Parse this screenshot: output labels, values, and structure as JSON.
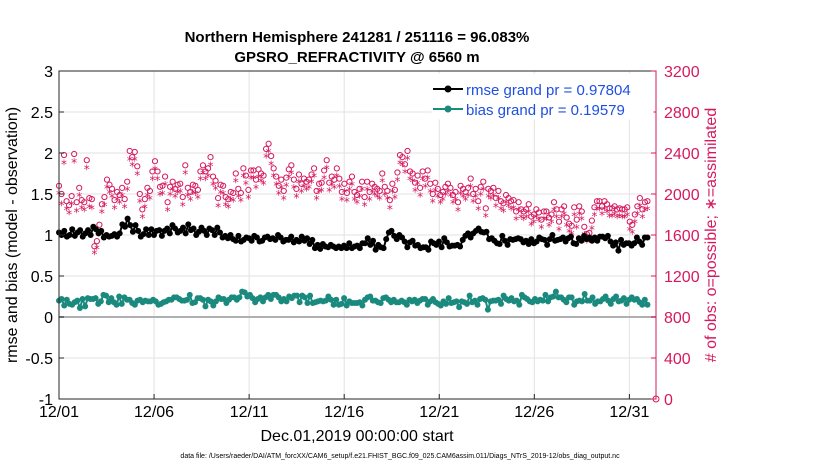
{
  "chart_data": {
    "type": "line",
    "title": "Northern Hemisphere 241281 / 251116 = 96.083%",
    "subtitle": "GPSRO_REFRACTIVITY @ 6560 m",
    "xlabel": "Dec.01,2019 00:00:00 start",
    "ylabel_left": "rmse and bias (model - observation)",
    "ylabel_right": "# of obs: o=possible; ∗=assimilated",
    "footnote": "data file: /Users/raeder/DAI/ATM_forcXX/CAM6_setup/f.e21.FHIST_BGC.f09_025.CAM6assim.011/Diags_NTrS_2019-12/obs_diag_output.nc",
    "x_tick_labels": [
      "12/01",
      "12/06",
      "12/11",
      "12/16",
      "12/21",
      "12/26",
      "12/31"
    ],
    "x_tick_days": [
      0,
      5,
      10,
      15,
      20,
      25,
      30
    ],
    "xlim": [
      0,
      31.4
    ],
    "ylim_left": [
      -1,
      3
    ],
    "y_ticks_left": [
      "-1",
      "-0.5",
      "0",
      "0.5",
      "1",
      "1.5",
      "2",
      "2.5",
      "3"
    ],
    "ylim_right": [
      0,
      3200
    ],
    "y_ticks_right": [
      "0",
      "400",
      "800",
      "1200",
      "1600",
      "2000",
      "2400",
      "2800",
      "3200"
    ],
    "grid": true,
    "legend_position": "top-right",
    "colors": {
      "rmse": "#000000",
      "bias": "#1a8a7e",
      "obs": "#d6195e",
      "legend_text": "#1f4fe0",
      "zero_line": "#b0b0b0"
    },
    "series": [
      {
        "name": "rmse grand pr = 0.97804",
        "axis": "left",
        "values": [
          1.03,
          1.0,
          1.05,
          0.98,
          1.0,
          1.07,
          0.99,
          1.03,
          1.06,
          0.98,
          1.02,
          1.06,
          1.0,
          1.1,
          1.07,
          1.02,
          1.05,
          0.97,
          1.0,
          0.98,
          0.99,
          1.01,
          0.98,
          1.02,
          1.13,
          1.1,
          1.2,
          1.12,
          1.04,
          1.12,
          1.05,
          0.98,
          1.01,
          1.07,
          1.0,
          1.07,
          1.0,
          1.05,
          1.06,
          0.99,
          1.05,
          1.08,
          1.02,
          1.12,
          1.08,
          1.03,
          1.05,
          1.09,
          1.02,
          1.13,
          1.06,
          1.08,
          1.0,
          1.04,
          1.09,
          1.05,
          1.0,
          1.08,
          1.06,
          1.0,
          1.09,
          1.03,
          0.97,
          0.99,
          0.96,
          1.0,
          0.95,
          0.93,
          0.99,
          0.92,
          0.94,
          0.97,
          0.96,
          0.93,
          0.99,
          0.97,
          0.92,
          0.93,
          0.97,
          0.98,
          0.95,
          0.96,
          0.94,
          1.0,
          0.97,
          0.92,
          0.94,
          0.94,
          0.98,
          0.91,
          0.94,
          0.92,
          0.98,
          0.93,
          0.96,
          0.89,
          0.94,
          0.84,
          0.88,
          0.83,
          0.89,
          0.86,
          0.85,
          0.88,
          0.86,
          0.84,
          0.86,
          0.84,
          0.87,
          0.84,
          0.9,
          0.84,
          0.86,
          0.87,
          0.84,
          0.9,
          0.9,
          0.96,
          0.88,
          0.93,
          0.82,
          0.88,
          0.85,
          0.84,
          0.95,
          1.03,
          1.05,
          0.99,
          0.95,
          1.0,
          0.97,
          0.92,
          0.85,
          0.91,
          0.93,
          0.87,
          0.88,
          0.84,
          0.85,
          0.85,
          0.82,
          0.92,
          0.9,
          0.88,
          0.92,
          0.85,
          0.96,
          0.91,
          0.86,
          0.87,
          0.87,
          0.88,
          0.86,
          0.94,
          0.99,
          1.02,
          0.97,
          1.02,
          1.05,
          1.08,
          1.04,
          1.03,
          1.04,
          0.95,
          0.96,
          0.93,
          0.9,
          0.89,
          0.99,
          0.93,
          0.88,
          0.95,
          0.94,
          0.95,
          0.96,
          0.95,
          0.91,
          0.93,
          0.89,
          0.95,
          0.9,
          0.92,
          0.97,
          0.95,
          0.94,
          0.88,
          0.95,
          1.0,
          0.93,
          0.94,
          0.95,
          0.97,
          0.92,
          0.96,
          0.98,
          0.9,
          0.89,
          0.96,
          0.93,
          0.99,
          0.95,
          0.97,
          0.93,
          0.97,
          0.93,
          0.98,
          0.98,
          0.96,
          0.99,
          0.92,
          0.87,
          0.91,
          0.81,
          0.94,
          0.88,
          0.9,
          0.9,
          0.87,
          0.9,
          0.97,
          0.92,
          0.88,
          0.97,
          0.97
        ]
      },
      {
        "name": "bias grand pr = 0.19579",
        "axis": "left",
        "values": [
          0.2,
          0.22,
          0.14,
          0.21,
          0.16,
          0.15,
          0.18,
          0.2,
          0.11,
          0.22,
          0.13,
          0.23,
          0.22,
          0.22,
          0.23,
          0.16,
          0.19,
          0.27,
          0.26,
          0.18,
          0.23,
          0.18,
          0.15,
          0.25,
          0.16,
          0.24,
          0.21,
          0.21,
          0.17,
          0.15,
          0.2,
          0.21,
          0.18,
          0.2,
          0.19,
          0.19,
          0.21,
          0.19,
          0.15,
          0.16,
          0.18,
          0.19,
          0.21,
          0.21,
          0.24,
          0.24,
          0.22,
          0.2,
          0.2,
          0.21,
          0.27,
          0.17,
          0.18,
          0.23,
          0.23,
          0.21,
          0.13,
          0.21,
          0.19,
          0.14,
          0.19,
          0.24,
          0.22,
          0.22,
          0.17,
          0.21,
          0.24,
          0.24,
          0.21,
          0.24,
          0.31,
          0.3,
          0.25,
          0.27,
          0.23,
          0.18,
          0.22,
          0.24,
          0.19,
          0.24,
          0.27,
          0.22,
          0.27,
          0.27,
          0.24,
          0.19,
          0.22,
          0.19,
          0.25,
          0.23,
          0.26,
          0.26,
          0.18,
          0.26,
          0.24,
          0.17,
          0.26,
          0.17,
          0.18,
          0.19,
          0.2,
          0.19,
          0.2,
          0.25,
          0.21,
          0.15,
          0.21,
          0.15,
          0.16,
          0.23,
          0.14,
          0.19,
          0.17,
          0.17,
          0.17,
          0.18,
          0.14,
          0.21,
          0.24,
          0.25,
          0.2,
          0.2,
          0.18,
          0.17,
          0.23,
          0.24,
          0.21,
          0.18,
          0.21,
          0.18,
          0.18,
          0.2,
          0.18,
          0.15,
          0.21,
          0.19,
          0.21,
          0.17,
          0.2,
          0.22,
          0.22,
          0.15,
          0.19,
          0.22,
          0.18,
          0.16,
          0.14,
          0.19,
          0.16,
          0.23,
          0.17,
          0.18,
          0.19,
          0.12,
          0.19,
          0.18,
          0.16,
          0.26,
          0.18,
          0.2,
          0.15,
          0.22,
          0.23,
          0.21,
          0.09,
          0.19,
          0.2,
          0.2,
          0.21,
          0.16,
          0.26,
          0.22,
          0.2,
          0.23,
          0.19,
          0.2,
          0.15,
          0.27,
          0.24,
          0.22,
          0.19,
          0.18,
          0.22,
          0.19,
          0.21,
          0.2,
          0.27,
          0.19,
          0.24,
          0.25,
          0.31,
          0.24,
          0.24,
          0.21,
          0.18,
          0.24,
          0.24,
          0.15,
          0.19,
          0.2,
          0.19,
          0.28,
          0.2,
          0.2,
          0.24,
          0.16,
          0.19,
          0.19,
          0.22,
          0.25,
          0.2,
          0.16,
          0.22,
          0.25,
          0.19,
          0.2,
          0.23,
          0.16,
          0.21,
          0.24,
          0.21,
          0.22,
          0.18,
          0.15,
          0.21,
          0.15
        ]
      },
      {
        "name": "possible",
        "axis": "right",
        "marker": "circle",
        "values": [
          2080,
          2000,
          2380,
          1930,
          1890,
          1980,
          2390,
          1920,
          2060,
          1940,
          1920,
          2330,
          1960,
          1950,
          1490,
          1540,
          1700,
          1900,
          1970,
          2140,
          2090,
          2050,
          1940,
          2020,
          1990,
          2060,
          1950,
          2120,
          2420,
          2360,
          2410,
          2270,
          2000,
          1850,
          1950,
          2060,
          2030,
          2220,
          2320,
          2220,
          2070,
          2080,
          2170,
          1920,
          2070,
          2120,
          2050,
          2090,
          2100,
          1970,
          2280,
          2060,
          2020,
          2090,
          2080,
          2040,
          2220,
          2280,
          2220,
          2250,
          2360,
          2170,
          2130,
          1960,
          2090,
          2080,
          1970,
          1950,
          2020,
          2010,
          2200,
          2050,
          2010,
          2250,
          2180,
          2040,
          2230,
          2230,
          2140,
          2240,
          2200,
          2180,
          2440,
          2490,
          2370,
          2250,
          2170,
          2080,
          2140,
          2030,
          2160,
          2240,
          2280,
          2140,
          2050,
          2190,
          2100,
          2150,
          2120,
          2140,
          2190,
          2250,
          2030,
          2100,
          2110,
          2230,
          2330,
          2110,
          2170,
          2140,
          2250,
          2150,
          2020,
          2100,
          2010,
          2120,
          2170,
          2020,
          1990,
          2050,
          2120,
          1970,
          2120,
          2020,
          2100,
          2070,
          2050,
          2030,
          2200,
          2070,
          2030,
          1940,
          2100,
          2040,
          2210,
          2380,
          2360,
          2290,
          2420,
          2220,
          2200,
          2110,
          2180,
          2060,
          2220,
          2150,
          2230,
          2100,
          2000,
          2110,
          2050,
          1990,
          2020,
          2070,
          2100,
          2060,
          1990,
          2020,
          1920,
          2080,
          2050,
          2020,
          2060,
          2150,
          2000,
          2050,
          1930,
          2070,
          2120,
          1860,
          2050,
          2030,
          2060,
          1960,
          2030,
          1930,
          1910,
          1990,
          1960,
          1930,
          1940,
          1830,
          1920,
          1850,
          1830,
          1850,
          1900,
          1780,
          1800,
          1850,
          1820,
          1750,
          1830,
          1830,
          1770,
          1800,
          1920,
          1850,
          1730,
          1850,
          1880,
          1770,
          1710,
          1690,
          1870,
          1750,
          1880,
          1830,
          1680,
          1610,
          1620,
          1740,
          1870,
          1930,
          1930,
          1880,
          1930,
          1900,
          1860,
          1860,
          1880,
          1850,
          1860,
          1850,
          1850,
          1870,
          1730,
          1700,
          1800,
          1880,
          1960,
          1850,
          1920,
          1930
        ]
      },
      {
        "name": "assimilated",
        "axis": "right",
        "marker": "asterisk",
        "values": [
          2000,
          1900,
          2300,
          1850,
          1810,
          1900,
          2310,
          1830,
          1980,
          1860,
          1840,
          2250,
          1870,
          1860,
          1420,
          1470,
          1620,
          1820,
          1890,
          2060,
          2010,
          1970,
          1860,
          1940,
          1910,
          1980,
          1870,
          2040,
          2330,
          2280,
          2330,
          2190,
          1920,
          1770,
          1870,
          1980,
          1950,
          2140,
          2240,
          2140,
          1990,
          2000,
          2090,
          1840,
          1990,
          2040,
          1970,
          2010,
          2020,
          1890,
          2200,
          1980,
          1940,
          2010,
          2000,
          1960,
          2140,
          2200,
          2140,
          2170,
          2280,
          2090,
          2050,
          1880,
          2010,
          2000,
          1890,
          1870,
          1940,
          1930,
          2120,
          1970,
          1930,
          2170,
          2100,
          1960,
          2150,
          2150,
          2060,
          2160,
          2120,
          2100,
          2360,
          2410,
          2290,
          2170,
          2090,
          2000,
          2060,
          1950,
          2080,
          2160,
          2200,
          2060,
          1970,
          2110,
          2020,
          2070,
          2040,
          2060,
          2110,
          2170,
          1950,
          2020,
          2030,
          2150,
          2250,
          2030,
          2090,
          2060,
          2170,
          2070,
          1940,
          2020,
          1930,
          2040,
          2090,
          1940,
          1910,
          1970,
          2040,
          1890,
          2040,
          1940,
          2020,
          1990,
          1970,
          1950,
          2120,
          1990,
          1950,
          1860,
          2020,
          1960,
          2130,
          2300,
          2280,
          2210,
          2340,
          2140,
          2120,
          2030,
          2100,
          1980,
          2140,
          2070,
          2150,
          2020,
          1920,
          2030,
          1970,
          1910,
          1940,
          1990,
          2020,
          1980,
          1910,
          1940,
          1840,
          2000,
          1970,
          1940,
          1980,
          2070,
          1920,
          1970,
          1850,
          1990,
          2040,
          1780,
          1970,
          1950,
          1980,
          1880,
          1950,
          1850,
          1830,
          1910,
          1880,
          1850,
          1860,
          1750,
          1840,
          1770,
          1750,
          1770,
          1820,
          1700,
          1720,
          1770,
          1740,
          1670,
          1750,
          1750,
          1690,
          1720,
          1840,
          1770,
          1650,
          1770,
          1800,
          1690,
          1630,
          1610,
          1790,
          1670,
          1800,
          1750,
          1600,
          1530,
          1540,
          1660,
          1790,
          1850,
          1850,
          1800,
          1850,
          1820,
          1780,
          1780,
          1800,
          1770,
          1780,
          1770,
          1770,
          1790,
          1650,
          1620,
          1720,
          1800,
          1880,
          1770,
          1840,
          1850
        ]
      }
    ]
  }
}
